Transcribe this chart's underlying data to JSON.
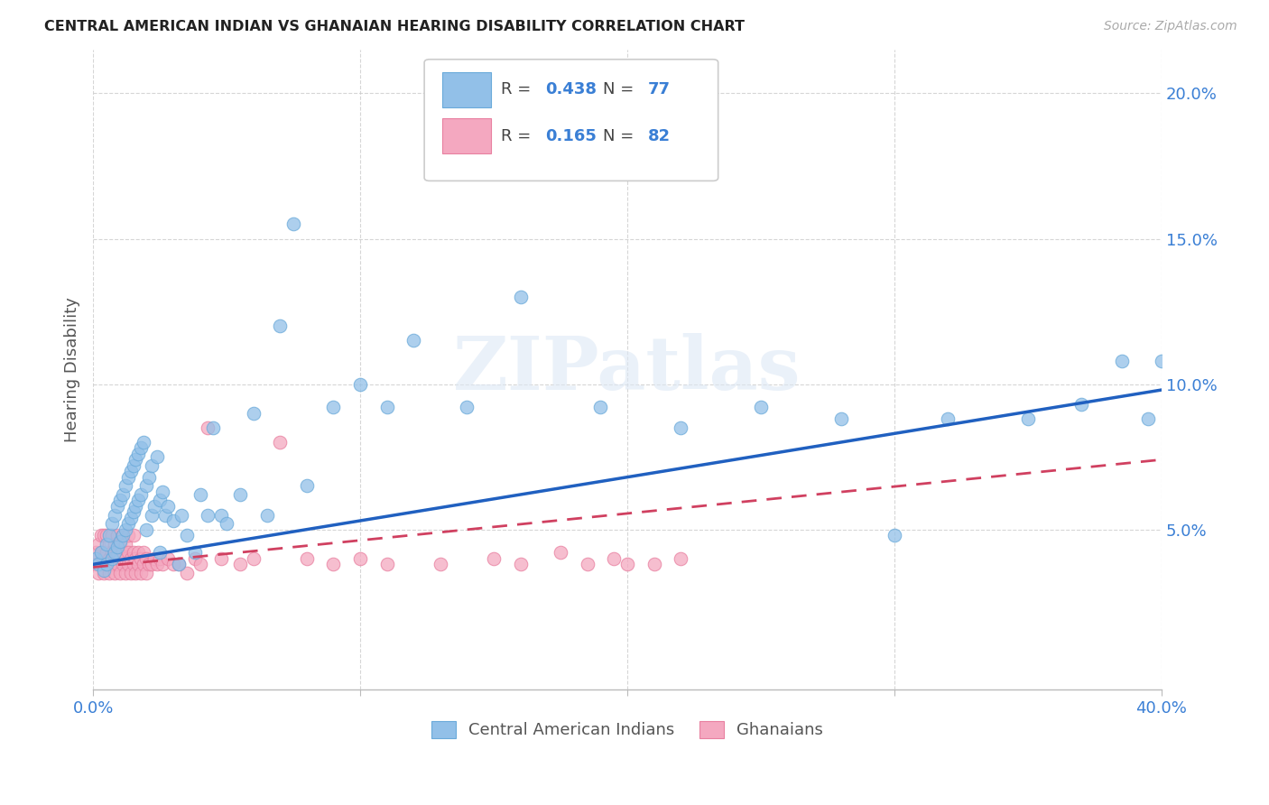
{
  "title": "CENTRAL AMERICAN INDIAN VS GHANAIAN HEARING DISABILITY CORRELATION CHART",
  "source": "Source: ZipAtlas.com",
  "ylabel": "Hearing Disability",
  "yticks": [
    "20.0%",
    "15.0%",
    "10.0%",
    "5.0%"
  ],
  "ytick_vals": [
    0.2,
    0.15,
    0.1,
    0.05
  ],
  "xlim": [
    0.0,
    0.4
  ],
  "ylim": [
    -0.005,
    0.215
  ],
  "legend_label_blue": "Central American Indians",
  "legend_label_pink": "Ghanaians",
  "blue_color": "#92c0e8",
  "pink_color": "#f4a8c0",
  "blue_edge_color": "#6aaada",
  "pink_edge_color": "#e880a0",
  "blue_line_color": "#2060c0",
  "pink_line_color": "#d04060",
  "watermark": "ZIPatlas",
  "blue_line_start_y": 0.038,
  "blue_line_end_y": 0.098,
  "pink_line_start_y": 0.037,
  "pink_line_end_y": 0.074,
  "blue_scatter_x": [
    0.001,
    0.002,
    0.003,
    0.004,
    0.005,
    0.005,
    0.006,
    0.007,
    0.007,
    0.008,
    0.008,
    0.009,
    0.009,
    0.01,
    0.01,
    0.011,
    0.011,
    0.012,
    0.012,
    0.013,
    0.013,
    0.014,
    0.014,
    0.015,
    0.015,
    0.016,
    0.016,
    0.017,
    0.017,
    0.018,
    0.018,
    0.019,
    0.02,
    0.02,
    0.021,
    0.022,
    0.022,
    0.023,
    0.024,
    0.025,
    0.025,
    0.026,
    0.027,
    0.028,
    0.03,
    0.032,
    0.033,
    0.035,
    0.038,
    0.04,
    0.043,
    0.045,
    0.048,
    0.05,
    0.055,
    0.06,
    0.065,
    0.07,
    0.075,
    0.08,
    0.09,
    0.1,
    0.11,
    0.12,
    0.14,
    0.16,
    0.19,
    0.22,
    0.25,
    0.28,
    0.3,
    0.32,
    0.35,
    0.37,
    0.385,
    0.395,
    0.4
  ],
  "blue_scatter_y": [
    0.04,
    0.038,
    0.042,
    0.036,
    0.045,
    0.038,
    0.048,
    0.052,
    0.04,
    0.055,
    0.042,
    0.058,
    0.044,
    0.06,
    0.046,
    0.062,
    0.048,
    0.065,
    0.05,
    0.068,
    0.052,
    0.07,
    0.054,
    0.072,
    0.056,
    0.074,
    0.058,
    0.076,
    0.06,
    0.078,
    0.062,
    0.08,
    0.065,
    0.05,
    0.068,
    0.055,
    0.072,
    0.058,
    0.075,
    0.06,
    0.042,
    0.063,
    0.055,
    0.058,
    0.053,
    0.038,
    0.055,
    0.048,
    0.042,
    0.062,
    0.055,
    0.085,
    0.055,
    0.052,
    0.062,
    0.09,
    0.055,
    0.12,
    0.155,
    0.065,
    0.092,
    0.1,
    0.092,
    0.115,
    0.092,
    0.13,
    0.092,
    0.085,
    0.092,
    0.088,
    0.048,
    0.088,
    0.088,
    0.093,
    0.108,
    0.088,
    0.108
  ],
  "pink_scatter_x": [
    0.001,
    0.001,
    0.002,
    0.002,
    0.003,
    0.003,
    0.003,
    0.004,
    0.004,
    0.004,
    0.005,
    0.005,
    0.005,
    0.006,
    0.006,
    0.006,
    0.007,
    0.007,
    0.007,
    0.008,
    0.008,
    0.008,
    0.009,
    0.009,
    0.009,
    0.01,
    0.01,
    0.01,
    0.011,
    0.011,
    0.011,
    0.012,
    0.012,
    0.012,
    0.013,
    0.013,
    0.013,
    0.014,
    0.014,
    0.015,
    0.015,
    0.015,
    0.016,
    0.016,
    0.017,
    0.017,
    0.018,
    0.018,
    0.019,
    0.019,
    0.02,
    0.02,
    0.021,
    0.022,
    0.023,
    0.024,
    0.025,
    0.026,
    0.028,
    0.03,
    0.032,
    0.035,
    0.038,
    0.04,
    0.043,
    0.048,
    0.055,
    0.06,
    0.07,
    0.08,
    0.09,
    0.1,
    0.11,
    0.13,
    0.15,
    0.16,
    0.175,
    0.185,
    0.195,
    0.2,
    0.21,
    0.22
  ],
  "pink_scatter_y": [
    0.038,
    0.042,
    0.035,
    0.045,
    0.038,
    0.042,
    0.048,
    0.035,
    0.04,
    0.048,
    0.038,
    0.042,
    0.048,
    0.035,
    0.04,
    0.045,
    0.038,
    0.042,
    0.048,
    0.035,
    0.04,
    0.045,
    0.038,
    0.042,
    0.048,
    0.035,
    0.04,
    0.045,
    0.038,
    0.042,
    0.048,
    0.035,
    0.04,
    0.045,
    0.038,
    0.042,
    0.048,
    0.035,
    0.04,
    0.038,
    0.042,
    0.048,
    0.035,
    0.04,
    0.038,
    0.042,
    0.035,
    0.04,
    0.038,
    0.042,
    0.035,
    0.04,
    0.038,
    0.038,
    0.04,
    0.038,
    0.04,
    0.038,
    0.04,
    0.038,
    0.038,
    0.035,
    0.04,
    0.038,
    0.085,
    0.04,
    0.038,
    0.04,
    0.08,
    0.04,
    0.038,
    0.04,
    0.038,
    0.038,
    0.04,
    0.038,
    0.042,
    0.038,
    0.04,
    0.038,
    0.038,
    0.04
  ]
}
